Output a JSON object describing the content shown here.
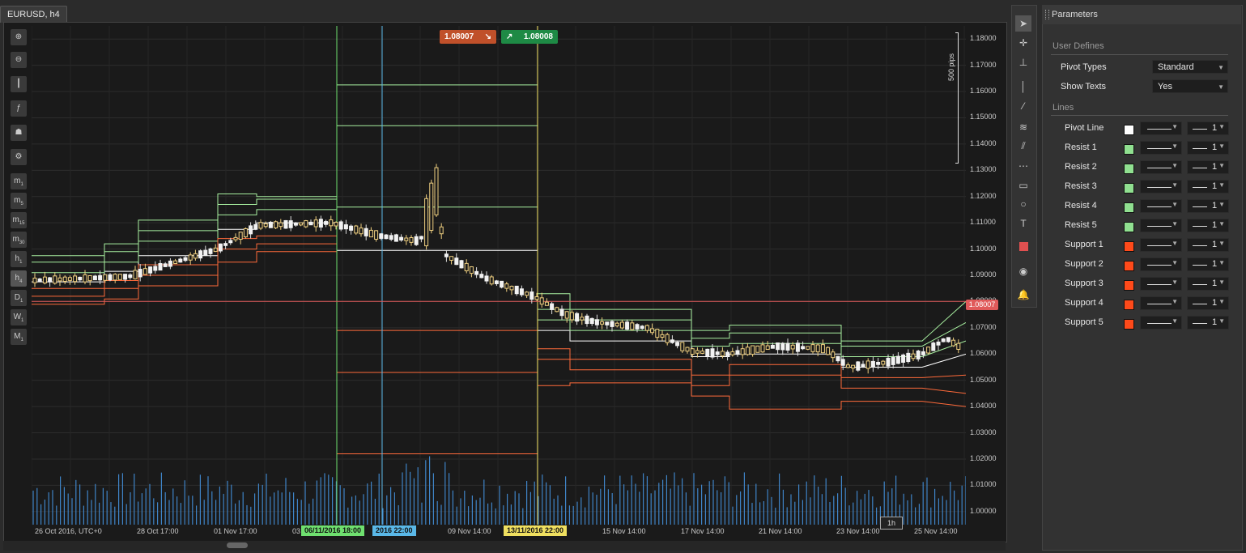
{
  "tab": {
    "title": "EURUSD, h4"
  },
  "left_toolbar": {
    "tools": [
      {
        "name": "zoom-in-icon"
      },
      {
        "name": "zoom-out-icon"
      },
      {
        "name": "chart-type-icon"
      },
      {
        "name": "indicators-icon"
      },
      {
        "name": "templates-icon"
      },
      {
        "name": "chart-settings-icon"
      }
    ],
    "timeframes": [
      {
        "label": "m",
        "sub": "1"
      },
      {
        "label": "m",
        "sub": "5"
      },
      {
        "label": "m",
        "sub": "15"
      },
      {
        "label": "m",
        "sub": "30"
      },
      {
        "label": "h",
        "sub": "1"
      },
      {
        "label": "h",
        "sub": "4",
        "active": true
      },
      {
        "label": "D",
        "sub": "1"
      },
      {
        "label": "W",
        "sub": "1"
      },
      {
        "label": "M",
        "sub": "1"
      }
    ]
  },
  "trade_buttons": {
    "sell": "1.08007",
    "buy": "1.08008"
  },
  "current_price": "1.08007",
  "scale_label": "500 pips",
  "chart_data": {
    "type": "candlestick",
    "symbol": "EURUSD",
    "timeframe": "h4",
    "ylim": [
      0.995,
      1.185
    ],
    "y_ticks": [
      "1.18000",
      "1.17000",
      "1.16000",
      "1.15000",
      "1.14000",
      "1.13000",
      "1.12000",
      "1.11000",
      "1.10000",
      "1.09000",
      "1.08000",
      "1.07000",
      "1.06000",
      "1.05000",
      "1.04000",
      "1.03000",
      "1.02000",
      "1.01000",
      "1.00000"
    ],
    "x_ticks": [
      "26 Oct 2016, UTC+0",
      "28 Oct 17:00",
      "01 Nov 17:00",
      "03",
      "09 Nov 14:00",
      "15 Nov 14:00",
      "17 Nov 14:00",
      "21 Nov 14:00",
      "23 Nov 14:00",
      "25 Nov 14:00"
    ],
    "cursor_tags": [
      {
        "label": "06/11/2016 18:00",
        "color": "#6fe06f"
      },
      {
        "label": "2016 22:00",
        "color": "#5ab8e8"
      },
      {
        "label": "13/11/2016 22:00",
        "color": "#f0e060"
      }
    ],
    "hover_label": "1h",
    "pivot_series": [
      {
        "name": "Pivot Line",
        "color": "#ffffff",
        "y": [
          1.0875,
          1.0875,
          1.0915,
          1.0915,
          1.0975,
          1.0975,
          1.1075,
          1.1075,
          1.11,
          1.11,
          1.0995,
          1.0995,
          1.069,
          1.069,
          1.065,
          1.065,
          1.059,
          1.059,
          1.06,
          1.06,
          1.055,
          1.055,
          1.06
        ]
      },
      {
        "name": "Resist 1",
        "color": "#a8f0a0",
        "y": [
          1.091,
          1.091,
          1.095,
          1.095,
          1.103,
          1.103,
          1.113,
          1.113,
          1.115,
          1.115,
          1.116,
          1.116,
          1.073,
          1.073,
          1.069,
          1.069,
          1.063,
          1.063,
          1.064,
          1.064,
          1.059,
          1.059,
          1.065
        ]
      },
      {
        "name": "Resist 2",
        "color": "#a8f0a0",
        "y": [
          1.095,
          1.095,
          1.099,
          1.099,
          1.107,
          1.107,
          1.117,
          1.117,
          1.119,
          1.119,
          1.147,
          1.147,
          1.077,
          1.077,
          1.073,
          1.073,
          1.066,
          1.066,
          1.068,
          1.068,
          1.063,
          1.063,
          1.072
        ]
      },
      {
        "name": "Resist 3",
        "color": "#a8f0a0",
        "y": [
          1.0975,
          1.0975,
          1.102,
          1.102,
          1.111,
          1.111,
          1.121,
          1.121,
          1.12,
          1.12,
          1.1625,
          1.1625,
          1.083,
          1.083,
          1.077,
          1.077,
          1.069,
          1.069,
          1.071,
          1.071,
          1.065,
          1.065,
          1.08
        ]
      },
      {
        "name": "Support 1",
        "color": "#ff6a3a",
        "y": [
          1.085,
          1.085,
          1.088,
          1.088,
          1.094,
          1.094,
          1.104,
          1.104,
          1.105,
          1.105,
          1.069,
          1.069,
          1.062,
          1.062,
          1.058,
          1.058,
          1.052,
          1.052,
          1.056,
          1.056,
          1.051,
          1.051,
          1.052
        ]
      },
      {
        "name": "Support 2",
        "color": "#ff6a3a",
        "y": [
          1.082,
          1.082,
          1.085,
          1.085,
          1.09,
          1.09,
          1.1,
          1.1,
          1.102,
          1.102,
          1.053,
          1.053,
          1.058,
          1.058,
          1.054,
          1.054,
          1.048,
          1.048,
          1.052,
          1.052,
          1.047,
          1.047,
          1.045
        ]
      },
      {
        "name": "Support 3",
        "color": "#ff6a3a",
        "y": [
          1.079,
          1.079,
          1.081,
          1.081,
          1.086,
          1.086,
          1.095,
          1.095,
          1.099,
          1.099,
          1.022,
          1.022,
          1.048,
          1.048,
          1.049,
          1.049,
          1.044,
          1.044,
          1.039,
          1.039,
          1.042,
          1.042,
          1.04
        ]
      }
    ]
  },
  "tools_panel": {
    "tools": [
      "cursor-icon",
      "crosshair-icon",
      "measure-icon",
      "vertical-line-icon",
      "trend-line-icon",
      "fibonacci-icon",
      "pitchfork-icon",
      "fib-expansion-icon",
      "rectangle-icon",
      "ellipse-icon",
      "text-icon",
      "color-swatch-icon",
      "screenshot-icon",
      "alert-icon"
    ]
  },
  "parameters": {
    "title": "Parameters",
    "user_defines_title": "User Defines",
    "pivot_types": {
      "label": "Pivot Types",
      "value": "Standard"
    },
    "show_texts": {
      "label": "Show Texts",
      "value": "Yes"
    },
    "lines_title": "Lines",
    "lines": [
      {
        "label": "Pivot Line",
        "color": "#ffffff",
        "width": "1"
      },
      {
        "label": "Resist 1",
        "color": "#90e090",
        "width": "1"
      },
      {
        "label": "Resist 2",
        "color": "#90e090",
        "width": "1"
      },
      {
        "label": "Resist 3",
        "color": "#90e090",
        "width": "1"
      },
      {
        "label": "Resist 4",
        "color": "#90e090",
        "width": "1"
      },
      {
        "label": "Resist 5",
        "color": "#90e090",
        "width": "1"
      },
      {
        "label": "Support 1",
        "color": "#ff4a1a",
        "width": "1"
      },
      {
        "label": "Support 2",
        "color": "#ff4a1a",
        "width": "1"
      },
      {
        "label": "Support 3",
        "color": "#ff4a1a",
        "width": "1"
      },
      {
        "label": "Support 4",
        "color": "#ff4a1a",
        "width": "1"
      },
      {
        "label": "Support 5",
        "color": "#ff4a1a",
        "width": "1"
      }
    ]
  }
}
